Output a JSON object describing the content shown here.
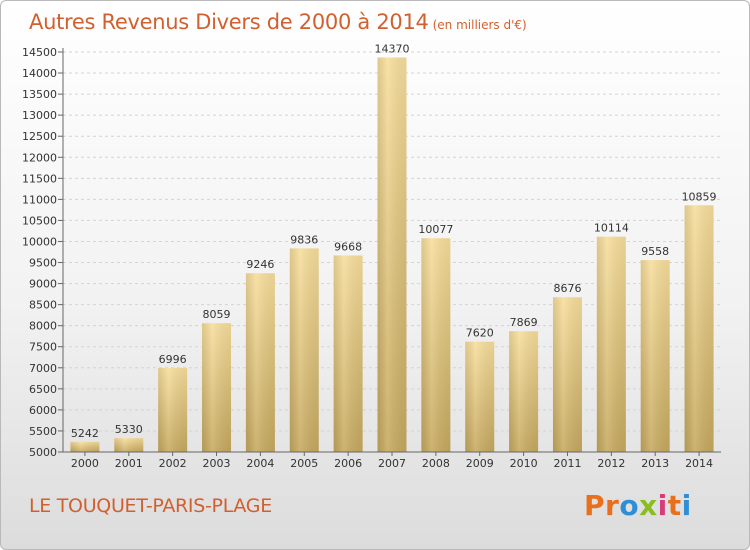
{
  "chart_data": {
    "type": "bar",
    "title": "Autres Revenus Divers de 2000 à 2014",
    "subtitle": "(en milliers d'€)",
    "categories": [
      "2000",
      "2001",
      "2002",
      "2003",
      "2004",
      "2005",
      "2006",
      "2007",
      "2008",
      "2009",
      "2010",
      "2011",
      "2012",
      "2013",
      "2014"
    ],
    "values": [
      5242,
      5330,
      6996,
      8059,
      9246,
      9836,
      9668,
      14370,
      10077,
      7620,
      7869,
      8676,
      10114,
      9558,
      10859
    ],
    "ylim": [
      5000,
      14500
    ],
    "yticks": [
      5000,
      5500,
      6000,
      6500,
      7000,
      7500,
      8000,
      8500,
      9000,
      9500,
      10000,
      10500,
      11000,
      11500,
      12000,
      12500,
      13000,
      13500,
      14000,
      14500
    ],
    "grid": true,
    "xlabel": "",
    "ylabel": ""
  },
  "footer": {
    "commune": "LE TOUQUET-PARIS-PLAGE",
    "brand_letters": [
      "P",
      "r",
      "o",
      "x",
      "i",
      "t",
      "i"
    ],
    "brand_colors": [
      "#e8701c",
      "#e8701c",
      "#2f8fd6",
      "#8bbd22",
      "#d63b7a",
      "#e8701c",
      "#2f8fd6"
    ]
  },
  "colors": {
    "title": "#d2602f",
    "bar_light": "#f6dc98",
    "bar_dark": "#c8ac62"
  }
}
